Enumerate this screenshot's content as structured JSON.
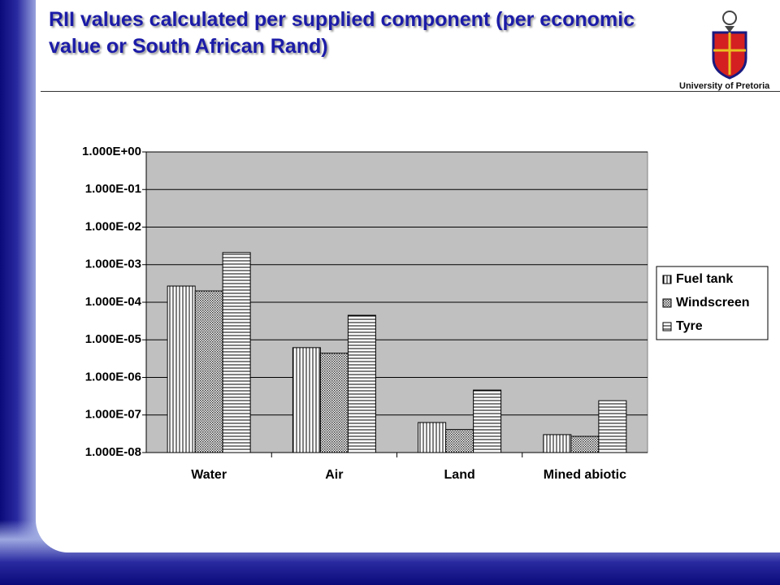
{
  "header": {
    "title": "RII values calculated per supplied component (per economic value or South African Rand)",
    "institution": "University of Pretoria"
  },
  "chart_data": {
    "type": "bar",
    "log_scale": true,
    "grid": true,
    "legend": "right",
    "categories": [
      "Water",
      "Air",
      "Land",
      "Mined abiotic"
    ],
    "series": [
      {
        "name": "Fuel tank",
        "color": "#000000",
        "pattern": "vertical",
        "values": [
          0.00027,
          6.2e-06,
          6.3e-08,
          3e-08
        ]
      },
      {
        "name": "Windscreen",
        "color": "#000000",
        "pattern": "crosshatch",
        "values": [
          0.0002,
          4.4e-06,
          4.1e-08,
          2.7e-08
        ]
      },
      {
        "name": "Tyre",
        "color": "#000000",
        "pattern": "horizontal",
        "values": [
          0.0021,
          4.5e-05,
          4.6e-07,
          2.4e-07
        ]
      }
    ],
    "ylim": [
      1e-08,
      1
    ],
    "yticks": [
      {
        "value": 1,
        "label": "1.000E+00"
      },
      {
        "value": 0.1,
        "label": "1.000E-01"
      },
      {
        "value": 0.01,
        "label": "1.000E-02"
      },
      {
        "value": 0.001,
        "label": "1.000E-03"
      },
      {
        "value": 0.0001,
        "label": "1.000E-04"
      },
      {
        "value": 1e-05,
        "label": "1.000E-05"
      },
      {
        "value": 1e-06,
        "label": "1.000E-06"
      },
      {
        "value": 1e-07,
        "label": "1.000E-07"
      },
      {
        "value": 1e-08,
        "label": "1.000E-08"
      }
    ]
  }
}
